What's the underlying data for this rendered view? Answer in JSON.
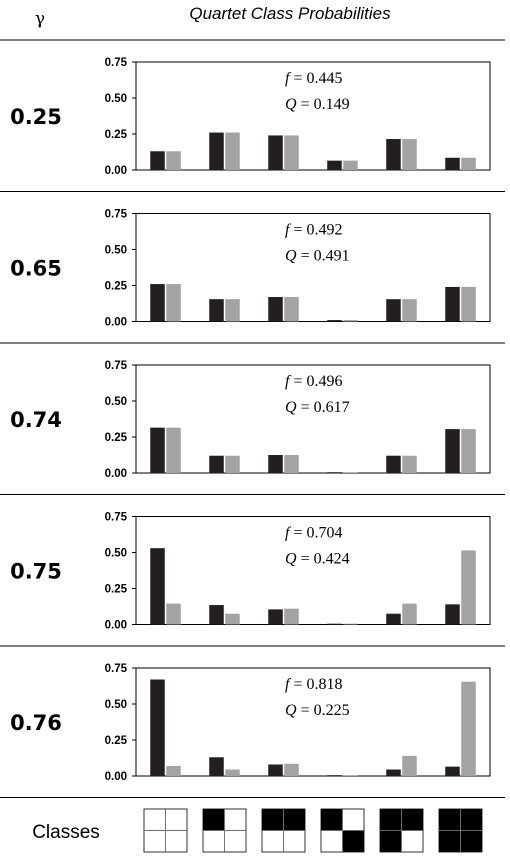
{
  "header": {
    "gamma_symbol": "γ",
    "title": "Quartet Class Probabilities"
  },
  "footer": {
    "classes_label": "Classes"
  },
  "colors": {
    "series_dark": "#231f20",
    "series_light": "#a3a3a3"
  },
  "classes_patterns": [
    [
      0,
      0,
      0,
      0
    ],
    [
      1,
      0,
      0,
      0
    ],
    [
      1,
      1,
      0,
      0
    ],
    [
      1,
      0,
      0,
      1
    ],
    [
      1,
      1,
      1,
      0
    ],
    [
      1,
      1,
      1,
      1
    ]
  ],
  "chart_data": [
    {
      "type": "bar",
      "gamma": "0.25",
      "annotations": [
        {
          "symbol": "f",
          "value": "= 0.445"
        },
        {
          "symbol": "Q",
          "value": "= 0.149"
        }
      ],
      "ylim": [
        0,
        0.75
      ],
      "yticks": [
        "0.00",
        "0.25",
        "0.50",
        "0.75"
      ],
      "categories": [
        "1",
        "2",
        "3",
        "4",
        "5",
        "6"
      ],
      "series": [
        {
          "values": [
            0.13,
            0.26,
            0.24,
            0.065,
            0.215,
            0.085
          ]
        },
        {
          "values": [
            0.13,
            0.26,
            0.24,
            0.065,
            0.215,
            0.085
          ]
        }
      ]
    },
    {
      "type": "bar",
      "gamma": "0.65",
      "annotations": [
        {
          "symbol": "f",
          "value": "= 0.492"
        },
        {
          "symbol": "Q",
          "value": "= 0.491"
        }
      ],
      "ylim": [
        0,
        0.75
      ],
      "yticks": [
        "0.00",
        "0.25",
        "0.50",
        "0.75"
      ],
      "categories": [
        "1",
        "2",
        "3",
        "4",
        "5",
        "6"
      ],
      "series": [
        {
          "values": [
            0.26,
            0.155,
            0.17,
            0.01,
            0.155,
            0.24
          ]
        },
        {
          "values": [
            0.26,
            0.155,
            0.17,
            0.01,
            0.155,
            0.24
          ]
        }
      ]
    },
    {
      "type": "bar",
      "gamma": "0.74",
      "annotations": [
        {
          "symbol": "f",
          "value": "= 0.496"
        },
        {
          "symbol": "Q",
          "value": "= 0.617"
        }
      ],
      "ylim": [
        0,
        0.75
      ],
      "yticks": [
        "0.00",
        "0.25",
        "0.50",
        "0.75"
      ],
      "categories": [
        "1",
        "2",
        "3",
        "4",
        "5",
        "6"
      ],
      "series": [
        {
          "values": [
            0.315,
            0.12,
            0.125,
            0.003,
            0.12,
            0.305
          ]
        },
        {
          "values": [
            0.315,
            0.12,
            0.125,
            0.003,
            0.12,
            0.305
          ]
        }
      ]
    },
    {
      "type": "bar",
      "gamma": "0.75",
      "annotations": [
        {
          "symbol": "f",
          "value": "= 0.704"
        },
        {
          "symbol": "Q",
          "value": "= 0.424"
        }
      ],
      "ylim": [
        0,
        0.75
      ],
      "yticks": [
        "0.00",
        "0.25",
        "0.50",
        "0.75"
      ],
      "categories": [
        "1",
        "2",
        "3",
        "4",
        "5",
        "6"
      ],
      "series": [
        {
          "values": [
            0.53,
            0.135,
            0.105,
            0.003,
            0.075,
            0.14
          ]
        },
        {
          "values": [
            0.145,
            0.075,
            0.11,
            0.003,
            0.145,
            0.515
          ]
        }
      ]
    },
    {
      "type": "bar",
      "gamma": "0.76",
      "annotations": [
        {
          "symbol": "f",
          "value": "= 0.818"
        },
        {
          "symbol": "Q",
          "value": "= 0.225"
        }
      ],
      "ylim": [
        0,
        0.75
      ],
      "yticks": [
        "0.00",
        "0.25",
        "0.50",
        "0.75"
      ],
      "categories": [
        "1",
        "2",
        "3",
        "4",
        "5",
        "6"
      ],
      "series": [
        {
          "values": [
            0.67,
            0.13,
            0.08,
            0.003,
            0.045,
            0.065
          ]
        },
        {
          "values": [
            0.07,
            0.045,
            0.085,
            0.003,
            0.14,
            0.655
          ]
        }
      ]
    }
  ]
}
